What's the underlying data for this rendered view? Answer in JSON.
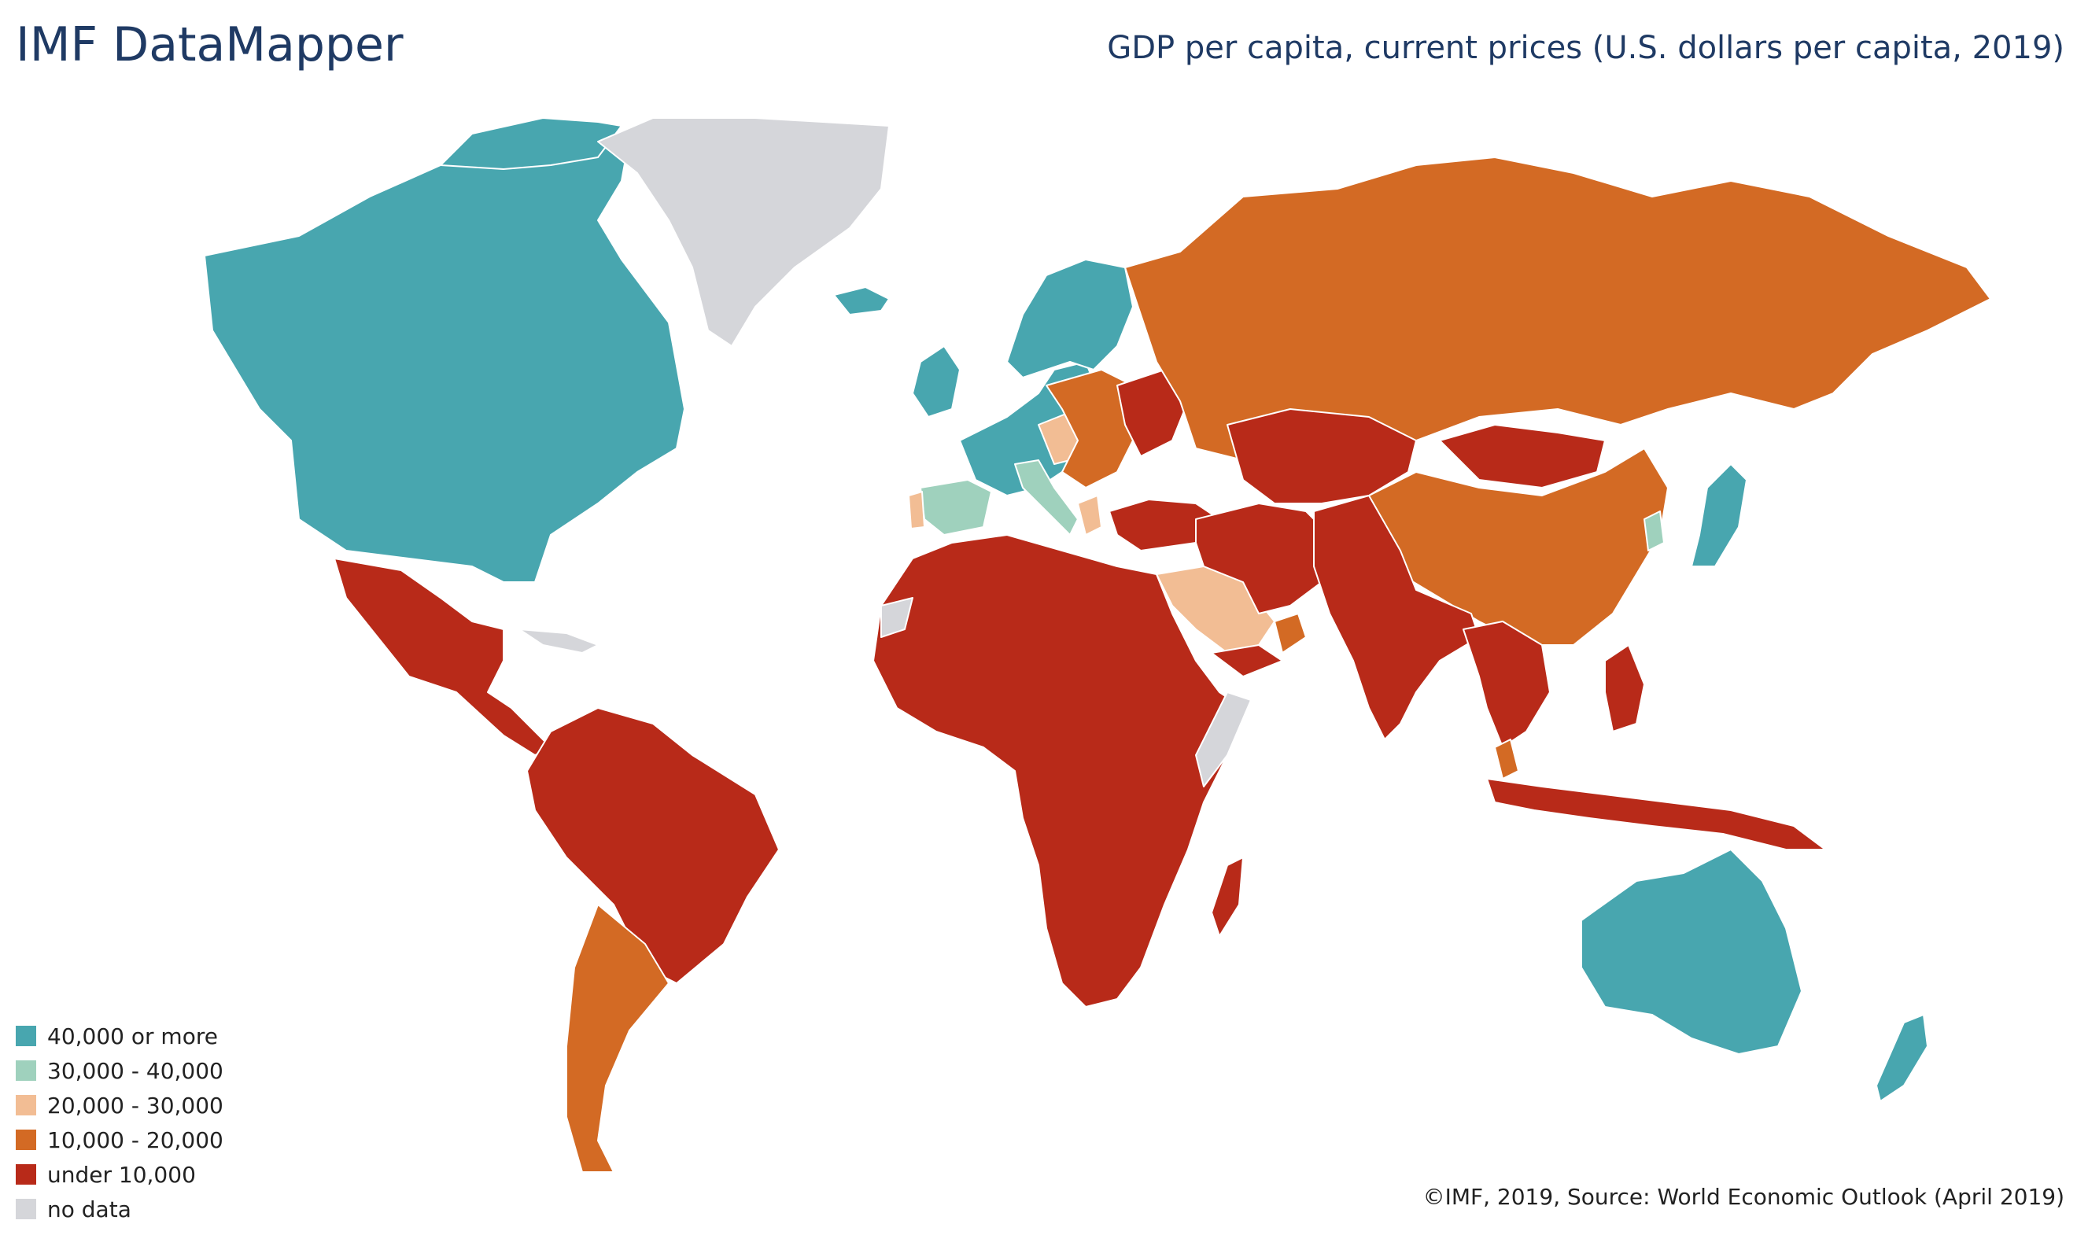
{
  "header": {
    "app_title": "IMF DataMapper",
    "map_title": "GDP per capita, current prices (U.S. dollars per capita, 2019)"
  },
  "colors": {
    "c40plus": "#48a6af",
    "c30_40": "#9fd1bd",
    "c20_30": "#f2bd94",
    "c10_20": "#d36a24",
    "under10": "#b82a19",
    "nodata": "#d5d6da"
  },
  "legend": {
    "items": [
      {
        "label": "40,000 or more",
        "color": "#48a6af"
      },
      {
        "label": "30,000 - 40,000",
        "color": "#9fd1bd"
      },
      {
        "label": "20,000 - 30,000",
        "color": "#f2bd94"
      },
      {
        "label": "10,000 - 20,000",
        "color": "#d36a24"
      },
      {
        "label": "under 10,000",
        "color": "#b82a19"
      },
      {
        "label": "no data",
        "color": "#d5d6da"
      }
    ]
  },
  "footer": {
    "source": "©IMF, 2019, Source: World Economic Outlook (April 2019)"
  }
}
